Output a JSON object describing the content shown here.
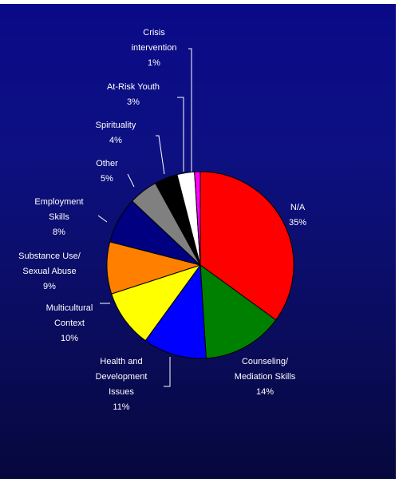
{
  "chart_data": {
    "type": "pie",
    "title": "",
    "slices": [
      {
        "label": [
          "N/A"
        ],
        "value": 35,
        "pct_label": "35%",
        "color": "#ff0000"
      },
      {
        "label": [
          "Counseling/",
          "Mediation Skills"
        ],
        "value": 14,
        "pct_label": "14%",
        "color": "#008000"
      },
      {
        "label": [
          "Health and",
          "Development",
          "Issues"
        ],
        "value": 11,
        "pct_label": "11%",
        "color": "#0000ff"
      },
      {
        "label": [
          "Multicultural",
          "Context"
        ],
        "value": 10,
        "pct_label": "10%",
        "color": "#ffff00"
      },
      {
        "label": [
          "Substance Use/",
          "Sexual Abuse"
        ],
        "value": 9,
        "pct_label": "9%",
        "color": "#ff8000"
      },
      {
        "label": [
          "Employment",
          "Skills"
        ],
        "value": 8,
        "pct_label": "8%",
        "color": "#000080"
      },
      {
        "label": [
          "Other"
        ],
        "value": 5,
        "pct_label": "5%",
        "color": "#808080"
      },
      {
        "label": [
          "Spirituality"
        ],
        "value": 4,
        "pct_label": "4%",
        "color": "#000000"
      },
      {
        "label": [
          "At-Risk Youth"
        ],
        "value": 3,
        "pct_label": "3%",
        "color": "#ffffff"
      },
      {
        "label": [
          "Crisis",
          "intervention"
        ],
        "value": 1,
        "pct_label": "1%",
        "color": "#ff00ff"
      }
    ]
  }
}
